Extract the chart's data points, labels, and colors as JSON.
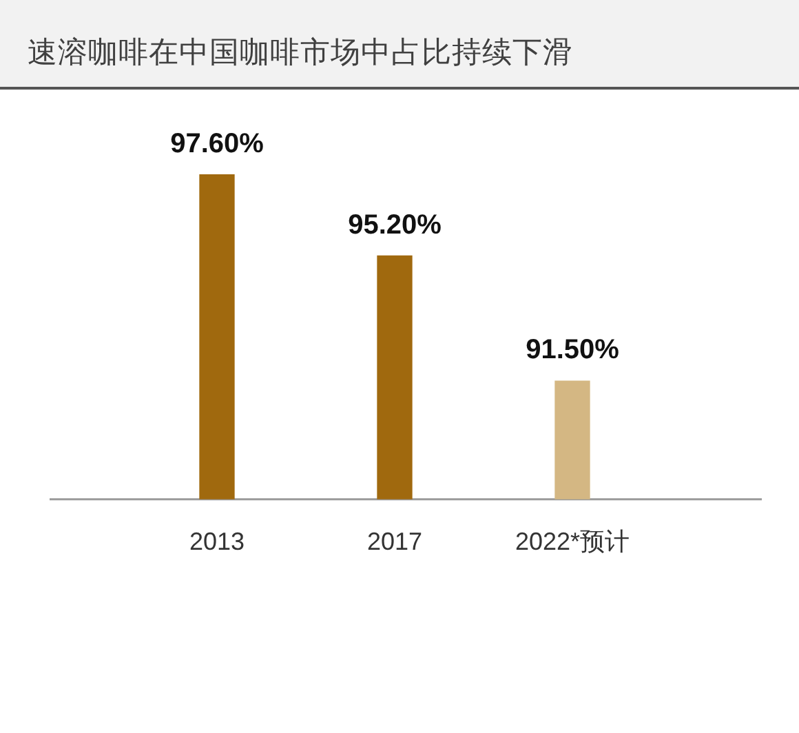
{
  "chart_data": {
    "type": "bar",
    "title": "速溶咖啡在中国咖啡市场中占比持续下滑",
    "categories": [
      "2013",
      "2017",
      "2022*预计"
    ],
    "values": [
      97.6,
      95.2,
      91.5
    ],
    "colors": [
      "#a0690e",
      "#a0690e",
      "#d4b783"
    ],
    "ylim": [
      88,
      100
    ],
    "value_labels": [
      "97.60%",
      "95.20%",
      "91.50%"
    ]
  }
}
